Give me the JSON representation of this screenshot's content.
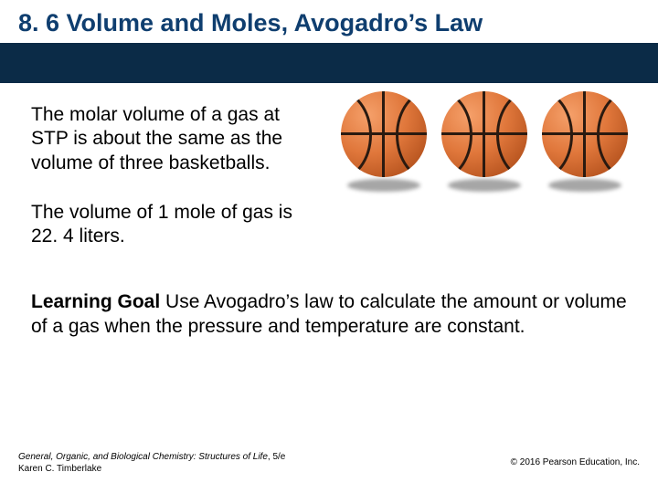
{
  "colors": {
    "title": "#0f3e6f",
    "bar": "#0b2b47",
    "ball_fill": "radial-gradient(circle at 32% 28%, #f5a06a 0%, #e0773b 45%, #b85520 80%, #8f3e15 100%)",
    "ball_hex": "#d9743a",
    "shadow": "rgba(0,0,0,0.35)"
  },
  "title": "8. 6 Volume and Moles, Avogadro’s Law",
  "para1": "The molar volume of a gas at STP is about the same as the volume of three basketballs.",
  "para2": "The volume of 1 mole of gas is 22. 4 liters.",
  "learning_label": "Learning Goal",
  "learning_text": "  Use Avogadro’s law to calculate the amount or volume of a gas when the pressure and temperature are constant.",
  "footer_book": "General, Organic, and Biological Chemistry: Structures of Life",
  "footer_ed": ", 5/e",
  "footer_author": "Karen C. Timberlake",
  "footer_copy": "© 2016 Pearson Education, Inc."
}
